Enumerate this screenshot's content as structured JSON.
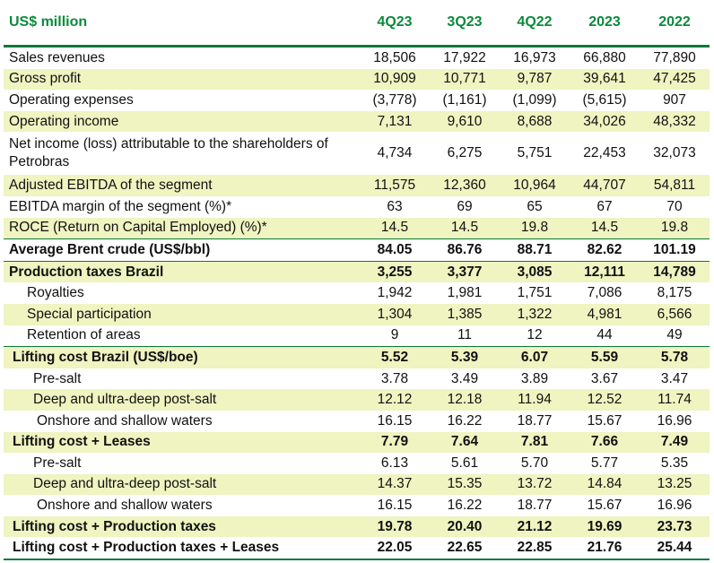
{
  "header": {
    "unit": "US$ million",
    "columns": [
      "4Q23",
      "3Q23",
      "4Q22",
      "2023",
      "2022"
    ]
  },
  "colors": {
    "accent": "#0b8a3c",
    "row_shade": "#eff4c1"
  },
  "rows": [
    {
      "label": "Sales revenues",
      "values": [
        "18,506",
        "17,922",
        "16,973",
        "66,880",
        "77,890"
      ]
    },
    {
      "label": "Gross profit",
      "values": [
        "10,909",
        "10,771",
        "9,787",
        "39,641",
        "47,425"
      ]
    },
    {
      "label": "Operating expenses",
      "values": [
        "(3,778)",
        "(1,161)",
        "(1,099)",
        "(5,615)",
        "907"
      ]
    },
    {
      "label": "Operating income",
      "values": [
        "7,131",
        "9,610",
        "8,688",
        "34,026",
        "48,332"
      ]
    },
    {
      "label": "Net income (loss) attributable to the shareholders of Petrobras",
      "values": [
        "4,734",
        "6,275",
        "5,751",
        "22,453",
        "32,073"
      ]
    },
    {
      "label": "Adjusted EBITDA of the segment",
      "values": [
        "11,575",
        "12,360",
        "10,964",
        "44,707",
        "54,811"
      ]
    },
    {
      "label": "EBITDA margin of the segment (%)*",
      "values": [
        "63",
        "69",
        "65",
        "67",
        "70"
      ]
    },
    {
      "label": "ROCE (Return on Capital Employed) (%)*",
      "values": [
        "14.5",
        "14.5",
        "19.8",
        "14.5",
        "19.8"
      ]
    },
    {
      "label": "Average Brent crude (US$/bbl)",
      "values": [
        "84.05",
        "86.76",
        "88.71",
        "82.62",
        "101.19"
      ]
    },
    {
      "label": "Production taxes Brazil",
      "values": [
        "3,255",
        "3,377",
        "3,085",
        "12,111",
        "14,789"
      ]
    },
    {
      "label": "Royalties",
      "values": [
        "1,942",
        "1,981",
        "1,751",
        "7,086",
        "8,175"
      ]
    },
    {
      "label": "Special participation",
      "values": [
        "1,304",
        "1,385",
        "1,322",
        "4,981",
        "6,566"
      ]
    },
    {
      "label": "Retention of areas",
      "values": [
        "9",
        "11",
        "12",
        "44",
        "49"
      ]
    },
    {
      "label": "Lifting cost Brazil (US$/boe)",
      "values": [
        "5.52",
        "5.39",
        "6.07",
        "5.59",
        "5.78"
      ]
    },
    {
      "label": "Pre-salt",
      "values": [
        "3.78",
        "3.49",
        "3.89",
        "3.67",
        "3.47"
      ]
    },
    {
      "label": "Deep and ultra-deep post-salt",
      "values": [
        "12.12",
        "12.18",
        "11.94",
        "12.52",
        "11.74"
      ]
    },
    {
      "label": "Onshore and shallow waters",
      "values": [
        "16.15",
        "16.22",
        "18.77",
        "15.67",
        "16.96"
      ]
    },
    {
      "label": "Lifting cost + Leases",
      "values": [
        "7.79",
        "7.64",
        "7.81",
        "7.66",
        "7.49"
      ]
    },
    {
      "label": "Pre-salt",
      "values": [
        "6.13",
        "5.61",
        "5.70",
        "5.77",
        "5.35"
      ]
    },
    {
      "label": "Deep and ultra-deep post-salt",
      "values": [
        "14.37",
        "15.35",
        "13.72",
        "14.84",
        "13.25"
      ]
    },
    {
      "label": "Onshore and shallow waters",
      "values": [
        "16.15",
        "16.22",
        "18.77",
        "15.67",
        "16.96"
      ]
    },
    {
      "label": "Lifting cost + Production taxes",
      "values": [
        "19.78",
        "20.40",
        "21.12",
        "19.69",
        "23.73"
      ]
    },
    {
      "label": "Lifting cost + Production taxes + Leases",
      "values": [
        "22.05",
        "22.65",
        "22.85",
        "21.76",
        "25.44"
      ]
    }
  ]
}
